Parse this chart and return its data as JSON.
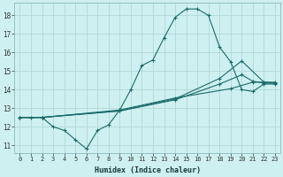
{
  "xlabel": "Humidex (Indice chaleur)",
  "background_color": "#cff0f0",
  "grid_color": "#b0d8d8",
  "line_color": "#1a6b6b",
  "xlim": [
    -0.5,
    23.5
  ],
  "ylim": [
    10.6,
    18.7
  ],
  "yticks": [
    11,
    12,
    13,
    14,
    15,
    16,
    17,
    18
  ],
  "xticks": [
    0,
    1,
    2,
    3,
    4,
    5,
    6,
    7,
    8,
    9,
    10,
    11,
    12,
    13,
    14,
    15,
    16,
    17,
    18,
    19,
    20,
    21,
    22,
    23
  ],
  "line1_x": [
    0,
    1,
    2,
    3,
    4,
    5,
    6,
    7,
    8,
    9,
    10,
    11,
    12,
    13,
    14,
    15,
    16,
    17,
    18,
    19,
    20,
    21,
    22,
    23
  ],
  "line1_y": [
    12.5,
    12.5,
    12.5,
    12.0,
    11.8,
    11.3,
    10.8,
    11.8,
    12.1,
    12.9,
    14.0,
    15.3,
    15.6,
    16.8,
    17.9,
    18.35,
    18.35,
    18.0,
    16.3,
    15.5,
    14.0,
    13.9,
    14.3,
    14.3
  ],
  "line2_x": [
    0,
    2,
    9,
    14,
    19,
    21,
    22,
    23
  ],
  "line2_y": [
    12.5,
    12.5,
    12.9,
    13.55,
    14.05,
    14.4,
    14.4,
    14.35
  ],
  "line3_x": [
    0,
    2,
    9,
    14,
    18,
    20,
    21,
    22,
    23
  ],
  "line3_y": [
    12.5,
    12.5,
    12.85,
    13.45,
    14.3,
    14.8,
    14.45,
    14.35,
    14.35
  ],
  "line4_x": [
    0,
    2,
    9,
    14,
    18,
    20,
    22,
    23
  ],
  "line4_y": [
    12.5,
    12.5,
    12.85,
    13.5,
    14.6,
    15.55,
    14.4,
    14.4
  ]
}
